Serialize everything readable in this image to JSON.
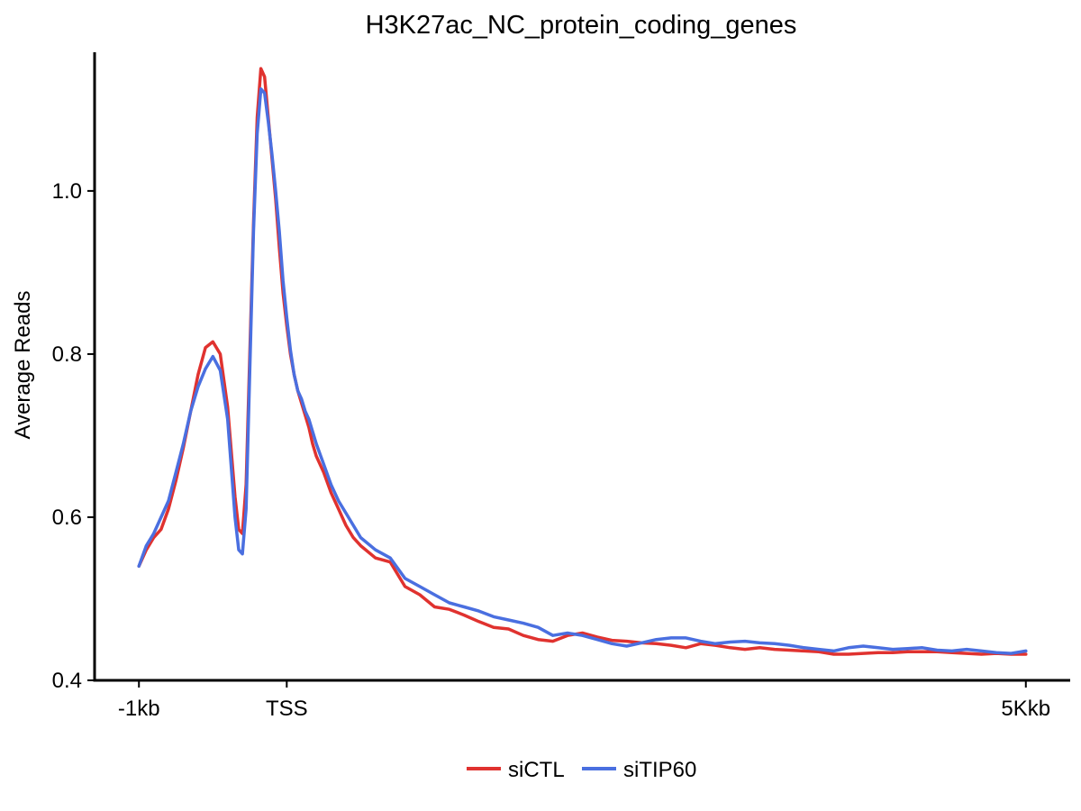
{
  "chart_data": {
    "type": "line",
    "title": "H3K27ac_NC_protein_coding_genes",
    "xlabel": "",
    "ylabel": "Average Reads",
    "x_ticks": [
      {
        "label": "-1kb",
        "value": -1000
      },
      {
        "label": "TSS",
        "value": 0
      },
      {
        "label": "5Kkb",
        "value": 5000
      }
    ],
    "y_ticks": [
      "0.4",
      "0.6",
      "0.8",
      "1.0"
    ],
    "xlim": [
      -1300,
      5300
    ],
    "ylim": [
      0.4,
      1.17
    ],
    "legend_position": "bottom",
    "x": [
      -1000,
      -950,
      -900,
      -850,
      -800,
      -750,
      -700,
      -650,
      -600,
      -550,
      -500,
      -450,
      -400,
      -350,
      -325,
      -300,
      -275,
      -250,
      -225,
      -200,
      -175,
      -150,
      -125,
      -100,
      -75,
      -50,
      -25,
      0,
      25,
      50,
      75,
      100,
      125,
      150,
      175,
      200,
      250,
      300,
      350,
      400,
      450,
      500,
      600,
      700,
      800,
      900,
      1000,
      1100,
      1200,
      1300,
      1400,
      1500,
      1600,
      1700,
      1800,
      1900,
      2000,
      2100,
      2200,
      2300,
      2400,
      2500,
      2600,
      2700,
      2800,
      2900,
      3000,
      3100,
      3200,
      3300,
      3400,
      3500,
      3600,
      3700,
      3800,
      3900,
      4000,
      4100,
      4200,
      4300,
      4400,
      4500,
      4600,
      4700,
      4800,
      4900,
      5000
    ],
    "series": [
      {
        "name": "siCTL",
        "color": "#e0322f",
        "values": [
          0.54,
          0.56,
          0.575,
          0.585,
          0.61,
          0.645,
          0.685,
          0.73,
          0.775,
          0.808,
          0.815,
          0.8,
          0.735,
          0.625,
          0.585,
          0.58,
          0.64,
          0.8,
          0.96,
          1.09,
          1.15,
          1.14,
          1.09,
          1.04,
          0.99,
          0.93,
          0.875,
          0.835,
          0.8,
          0.775,
          0.755,
          0.74,
          0.725,
          0.71,
          0.69,
          0.675,
          0.655,
          0.63,
          0.61,
          0.59,
          0.575,
          0.565,
          0.55,
          0.545,
          0.515,
          0.505,
          0.49,
          0.487,
          0.48,
          0.472,
          0.465,
          0.463,
          0.455,
          0.45,
          0.448,
          0.455,
          0.458,
          0.453,
          0.449,
          0.448,
          0.446,
          0.445,
          0.443,
          0.44,
          0.445,
          0.443,
          0.44,
          0.438,
          0.44,
          0.438,
          0.437,
          0.436,
          0.435,
          0.432,
          0.432,
          0.433,
          0.434,
          0.434,
          0.435,
          0.435,
          0.435,
          0.434,
          0.433,
          0.432,
          0.433,
          0.432,
          0.432
        ]
      },
      {
        "name": "siTIP60",
        "color": "#4a6fe0",
        "values": [
          0.54,
          0.565,
          0.58,
          0.6,
          0.62,
          0.655,
          0.69,
          0.73,
          0.76,
          0.782,
          0.797,
          0.78,
          0.72,
          0.6,
          0.56,
          0.555,
          0.61,
          0.78,
          0.95,
          1.07,
          1.125,
          1.12,
          1.085,
          1.045,
          1.0,
          0.95,
          0.89,
          0.845,
          0.805,
          0.775,
          0.755,
          0.745,
          0.73,
          0.72,
          0.705,
          0.69,
          0.665,
          0.64,
          0.62,
          0.605,
          0.59,
          0.575,
          0.56,
          0.55,
          0.525,
          0.515,
          0.505,
          0.495,
          0.49,
          0.485,
          0.478,
          0.474,
          0.47,
          0.465,
          0.455,
          0.458,
          0.455,
          0.45,
          0.445,
          0.442,
          0.446,
          0.45,
          0.452,
          0.452,
          0.448,
          0.445,
          0.447,
          0.448,
          0.446,
          0.445,
          0.443,
          0.44,
          0.438,
          0.436,
          0.44,
          0.442,
          0.44,
          0.438,
          0.439,
          0.44,
          0.437,
          0.436,
          0.438,
          0.436,
          0.434,
          0.433,
          0.436
        ]
      }
    ]
  }
}
